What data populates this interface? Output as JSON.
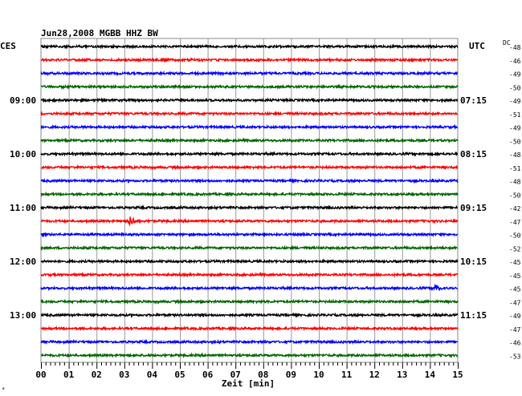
{
  "chart_data": {
    "type": "line",
    "title": "Jun28,2008   MGBB HHZ BW",
    "left_label": "CES",
    "right_label": "UTC",
    "dc_label": "DC",
    "xlabel": "Zeit [min]",
    "xlim": [
      0,
      15
    ],
    "x_ticks": [
      "00",
      "01",
      "02",
      "03",
      "04",
      "05",
      "06",
      "07",
      "08",
      "09",
      "10",
      "11",
      "12",
      "13",
      "14",
      "15"
    ],
    "grid": true,
    "colors": {
      "black": "#000000",
      "red": "#ff0000",
      "blue": "#0000ff",
      "green": "#006400"
    },
    "trace_color_cycle": [
      "black",
      "red",
      "blue",
      "green"
    ],
    "left_time_labels": [
      {
        "trace": 4,
        "text": "09:00"
      },
      {
        "trace": 8,
        "text": "10:00"
      },
      {
        "trace": 12,
        "text": "11:00"
      },
      {
        "trace": 16,
        "text": "12:00"
      },
      {
        "trace": 20,
        "text": "13:00"
      }
    ],
    "right_time_labels": [
      {
        "trace": 4,
        "text": "07:15"
      },
      {
        "trace": 8,
        "text": "08:15"
      },
      {
        "trace": 12,
        "text": "09:15"
      },
      {
        "trace": 16,
        "text": "10:15"
      },
      {
        "trace": 20,
        "text": "11:15"
      }
    ],
    "dc_offsets": [
      -48,
      -46,
      -49,
      -50,
      -49,
      -51,
      -49,
      -50,
      -48,
      -51,
      -48,
      -50,
      -42,
      -47,
      -50,
      -52,
      -45,
      -45,
      -45,
      -47,
      -49,
      -47,
      -46,
      -53
    ],
    "events": [
      {
        "trace": 13,
        "minute": 3.2,
        "amplitude": 8
      },
      {
        "trace": 18,
        "minute": 14.2,
        "amplitude": 7
      }
    ],
    "footer_mark": "*"
  }
}
